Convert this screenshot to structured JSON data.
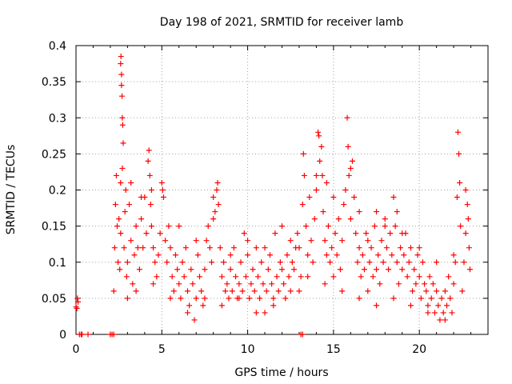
{
  "chart_data": {
    "type": "scatter",
    "title": "Day 198 of 2021, SRMTID for receiver lamb",
    "xlabel": "GPS time / hours",
    "ylabel": "SRMTID / TECUs",
    "xlim": [
      0,
      24
    ],
    "ylim": [
      0,
      0.4
    ],
    "xticks": [
      0,
      5,
      10,
      15,
      20
    ],
    "yticks": [
      0,
      0.05,
      0.1,
      0.15,
      0.2,
      0.25,
      0.3,
      0.35,
      0.4
    ],
    "ytick_labels": [
      "0",
      "0.05",
      "0.1",
      "0.15",
      "0.2",
      "0.25",
      "0.3",
      "0.35",
      "0.4"
    ],
    "grid": true,
    "marker": "+",
    "color": "#ff0000",
    "series": [
      {
        "name": "SRMTID",
        "points": [
          [
            0.0,
            0.038
          ],
          [
            0.05,
            0.036
          ],
          [
            0.08,
            0.05
          ],
          [
            0.12,
            0.045
          ],
          [
            0.2,
            0.0
          ],
          [
            0.3,
            0.0
          ],
          [
            0.35,
            0.0
          ],
          [
            0.7,
            0.0
          ],
          [
            2.0,
            0.0
          ],
          [
            2.1,
            0.0
          ],
          [
            2.2,
            0.0
          ],
          [
            13.1,
            0.0
          ],
          [
            13.2,
            0.0
          ],
          [
            2.2,
            0.06
          ],
          [
            2.25,
            0.12
          ],
          [
            2.3,
            0.18
          ],
          [
            2.35,
            0.22
          ],
          [
            2.4,
            0.15
          ],
          [
            2.45,
            0.1
          ],
          [
            2.5,
            0.16
          ],
          [
            2.55,
            0.09
          ],
          [
            2.6,
            0.14
          ],
          [
            2.6,
            0.375
          ],
          [
            2.62,
            0.385
          ],
          [
            2.65,
            0.36
          ],
          [
            2.65,
            0.345
          ],
          [
            2.68,
            0.33
          ],
          [
            2.7,
            0.3
          ],
          [
            2.72,
            0.29
          ],
          [
            2.75,
            0.265
          ],
          [
            2.7,
            0.23
          ],
          [
            2.6,
            0.21
          ],
          [
            2.8,
            0.12
          ],
          [
            2.85,
            0.17
          ],
          [
            2.9,
            0.2
          ],
          [
            2.95,
            0.08
          ],
          [
            3.0,
            0.1
          ],
          [
            3.1,
            0.18
          ],
          [
            3.2,
            0.13
          ],
          [
            3.3,
            0.07
          ],
          [
            3.4,
            0.11
          ],
          [
            3.5,
            0.15
          ],
          [
            3.6,
            0.12
          ],
          [
            3.7,
            0.09
          ],
          [
            3.8,
            0.16
          ],
          [
            3.9,
            0.12
          ],
          [
            4.0,
            0.19
          ],
          [
            4.1,
            0.14
          ],
          [
            4.2,
            0.24
          ],
          [
            4.25,
            0.255
          ],
          [
            4.3,
            0.22
          ],
          [
            4.35,
            0.18
          ],
          [
            4.4,
            0.15
          ],
          [
            4.5,
            0.12
          ],
          [
            4.6,
            0.1
          ],
          [
            4.7,
            0.08
          ],
          [
            4.8,
            0.11
          ],
          [
            4.9,
            0.14
          ],
          [
            5.0,
            0.21
          ],
          [
            5.05,
            0.2
          ],
          [
            5.1,
            0.19
          ],
          [
            5.2,
            0.13
          ],
          [
            5.3,
            0.1
          ],
          [
            5.4,
            0.15
          ],
          [
            5.5,
            0.12
          ],
          [
            5.6,
            0.08
          ],
          [
            5.7,
            0.06
          ],
          [
            5.8,
            0.11
          ],
          [
            5.9,
            0.09
          ],
          [
            6.0,
            0.07
          ],
          [
            6.1,
            0.05
          ],
          [
            6.2,
            0.1
          ],
          [
            6.3,
            0.08
          ],
          [
            6.4,
            0.12
          ],
          [
            6.5,
            0.06
          ],
          [
            6.6,
            0.04
          ],
          [
            6.7,
            0.09
          ],
          [
            6.8,
            0.07
          ],
          [
            6.9,
            0.02
          ],
          [
            7.0,
            0.05
          ],
          [
            7.1,
            0.11
          ],
          [
            7.2,
            0.08
          ],
          [
            7.3,
            0.06
          ],
          [
            7.4,
            0.04
          ],
          [
            7.5,
            0.09
          ],
          [
            7.6,
            0.13
          ],
          [
            7.7,
            0.15
          ],
          [
            7.8,
            0.12
          ],
          [
            7.9,
            0.1
          ],
          [
            8.0,
            0.16
          ],
          [
            8.1,
            0.17
          ],
          [
            8.2,
            0.2
          ],
          [
            8.25,
            0.21
          ],
          [
            8.3,
            0.18
          ],
          [
            8.4,
            0.12
          ],
          [
            8.5,
            0.08
          ],
          [
            8.6,
            0.1
          ],
          [
            8.7,
            0.06
          ],
          [
            8.8,
            0.07
          ],
          [
            8.9,
            0.05
          ],
          [
            9.0,
            0.09
          ],
          [
            9.1,
            0.06
          ],
          [
            9.2,
            0.12
          ],
          [
            9.3,
            0.08
          ],
          [
            9.4,
            0.05
          ],
          [
            9.5,
            0.07
          ],
          [
            9.6,
            0.1
          ],
          [
            9.7,
            0.06
          ],
          [
            9.8,
            0.14
          ],
          [
            9.9,
            0.08
          ],
          [
            10.0,
            0.11
          ],
          [
            10.1,
            0.05
          ],
          [
            10.2,
            0.07
          ],
          [
            10.3,
            0.09
          ],
          [
            10.4,
            0.06
          ],
          [
            10.5,
            0.12
          ],
          [
            10.6,
            0.08
          ],
          [
            10.7,
            0.05
          ],
          [
            10.8,
            0.1
          ],
          [
            10.9,
            0.07
          ],
          [
            11.0,
            0.03
          ],
          [
            11.1,
            0.06
          ],
          [
            11.2,
            0.09
          ],
          [
            11.3,
            0.11
          ],
          [
            11.4,
            0.07
          ],
          [
            11.5,
            0.05
          ],
          [
            11.6,
            0.14
          ],
          [
            11.7,
            0.08
          ],
          [
            11.8,
            0.06
          ],
          [
            11.9,
            0.1
          ],
          [
            12.0,
            0.09
          ],
          [
            12.1,
            0.07
          ],
          [
            12.2,
            0.05
          ],
          [
            12.3,
            0.11
          ],
          [
            12.4,
            0.08
          ],
          [
            12.5,
            0.13
          ],
          [
            12.6,
            0.1
          ],
          [
            12.7,
            0.09
          ],
          [
            12.8,
            0.12
          ],
          [
            12.9,
            0.14
          ],
          [
            13.0,
            0.06
          ],
          [
            13.1,
            0.08
          ],
          [
            13.2,
            0.18
          ],
          [
            13.25,
            0.25
          ],
          [
            13.3,
            0.22
          ],
          [
            13.4,
            0.15
          ],
          [
            13.5,
            0.11
          ],
          [
            13.6,
            0.19
          ],
          [
            13.7,
            0.13
          ],
          [
            13.8,
            0.1
          ],
          [
            13.9,
            0.16
          ],
          [
            14.0,
            0.2
          ],
          [
            14.1,
            0.28
          ],
          [
            14.15,
            0.275
          ],
          [
            14.2,
            0.24
          ],
          [
            14.3,
            0.26
          ],
          [
            14.35,
            0.22
          ],
          [
            14.4,
            0.17
          ],
          [
            14.5,
            0.13
          ],
          [
            14.6,
            0.11
          ],
          [
            14.7,
            0.15
          ],
          [
            14.8,
            0.1
          ],
          [
            14.9,
            0.12
          ],
          [
            15.0,
            0.08
          ],
          [
            15.1,
            0.14
          ],
          [
            15.2,
            0.11
          ],
          [
            15.3,
            0.16
          ],
          [
            15.4,
            0.09
          ],
          [
            15.5,
            0.13
          ],
          [
            15.6,
            0.18
          ],
          [
            15.7,
            0.2
          ],
          [
            15.8,
            0.3
          ],
          [
            15.85,
            0.26
          ],
          [
            15.9,
            0.22
          ],
          [
            16.0,
            0.16
          ],
          [
            16.1,
            0.24
          ],
          [
            16.2,
            0.19
          ],
          [
            16.3,
            0.14
          ],
          [
            16.4,
            0.1
          ],
          [
            16.5,
            0.12
          ],
          [
            16.6,
            0.08
          ],
          [
            16.7,
            0.11
          ],
          [
            16.8,
            0.09
          ],
          [
            16.9,
            0.14
          ],
          [
            17.0,
            0.06
          ],
          [
            17.1,
            0.1
          ],
          [
            17.2,
            0.12
          ],
          [
            17.3,
            0.08
          ],
          [
            17.4,
            0.15
          ],
          [
            17.5,
            0.09
          ],
          [
            17.6,
            0.11
          ],
          [
            17.7,
            0.07
          ],
          [
            17.8,
            0.13
          ],
          [
            17.9,
            0.1
          ],
          [
            18.0,
            0.16
          ],
          [
            18.1,
            0.12
          ],
          [
            18.2,
            0.09
          ],
          [
            18.3,
            0.14
          ],
          [
            18.4,
            0.11
          ],
          [
            18.5,
            0.19
          ],
          [
            18.6,
            0.15
          ],
          [
            18.7,
            0.1
          ],
          [
            18.8,
            0.07
          ],
          [
            18.9,
            0.12
          ],
          [
            19.0,
            0.09
          ],
          [
            19.1,
            0.11
          ],
          [
            19.2,
            0.14
          ],
          [
            19.3,
            0.08
          ],
          [
            19.4,
            0.1
          ],
          [
            19.5,
            0.12
          ],
          [
            19.6,
            0.06
          ],
          [
            19.7,
            0.09
          ],
          [
            19.8,
            0.07
          ],
          [
            19.9,
            0.11
          ],
          [
            20.0,
            0.08
          ],
          [
            20.1,
            0.05
          ],
          [
            20.2,
            0.1
          ],
          [
            20.3,
            0.07
          ],
          [
            20.4,
            0.06
          ],
          [
            20.5,
            0.04
          ],
          [
            20.6,
            0.08
          ],
          [
            20.7,
            0.05
          ],
          [
            20.8,
            0.07
          ],
          [
            20.9,
            0.03
          ],
          [
            21.0,
            0.06
          ],
          [
            21.1,
            0.04
          ],
          [
            21.2,
            0.02
          ],
          [
            21.3,
            0.05
          ],
          [
            21.4,
            0.03
          ],
          [
            21.5,
            0.06
          ],
          [
            21.6,
            0.04
          ],
          [
            21.7,
            0.08
          ],
          [
            21.8,
            0.05
          ],
          [
            21.9,
            0.03
          ],
          [
            22.0,
            0.07
          ],
          [
            22.1,
            0.1
          ],
          [
            22.2,
            0.19
          ],
          [
            22.25,
            0.28
          ],
          [
            22.3,
            0.25
          ],
          [
            22.35,
            0.21
          ],
          [
            22.4,
            0.15
          ],
          [
            22.5,
            0.06
          ],
          [
            22.6,
            0.1
          ],
          [
            22.7,
            0.14
          ],
          [
            22.8,
            0.18
          ],
          [
            22.85,
            0.16
          ],
          [
            22.9,
            0.12
          ],
          [
            22.95,
            0.09
          ],
          [
            3.0,
            0.05
          ],
          [
            3.5,
            0.06
          ],
          [
            4.5,
            0.07
          ],
          [
            5.5,
            0.05
          ],
          [
            6.5,
            0.03
          ],
          [
            7.5,
            0.05
          ],
          [
            8.5,
            0.04
          ],
          [
            9.5,
            0.05
          ],
          [
            10.5,
            0.03
          ],
          [
            11.5,
            0.04
          ],
          [
            12.5,
            0.06
          ],
          [
            13.5,
            0.08
          ],
          [
            14.5,
            0.07
          ],
          [
            15.5,
            0.06
          ],
          [
            16.5,
            0.05
          ],
          [
            17.5,
            0.04
          ],
          [
            18.5,
            0.05
          ],
          [
            19.5,
            0.04
          ],
          [
            20.5,
            0.03
          ],
          [
            21.5,
            0.02
          ],
          [
            3.2,
            0.21
          ],
          [
            3.8,
            0.19
          ],
          [
            4.4,
            0.2
          ],
          [
            6.0,
            0.15
          ],
          [
            7.0,
            0.13
          ],
          [
            8.0,
            0.19
          ],
          [
            9.0,
            0.11
          ],
          [
            10.0,
            0.13
          ],
          [
            11.0,
            0.12
          ],
          [
            12.0,
            0.15
          ],
          [
            13.0,
            0.12
          ],
          [
            14.0,
            0.22
          ],
          [
            14.6,
            0.21
          ],
          [
            15.0,
            0.19
          ],
          [
            16.0,
            0.23
          ],
          [
            16.5,
            0.17
          ],
          [
            17.0,
            0.13
          ],
          [
            17.5,
            0.17
          ],
          [
            18.0,
            0.15
          ],
          [
            18.7,
            0.17
          ],
          [
            19.0,
            0.14
          ],
          [
            20.0,
            0.12
          ],
          [
            21.0,
            0.1
          ],
          [
            22.0,
            0.11
          ],
          [
            22.7,
            0.2
          ]
        ]
      }
    ]
  }
}
